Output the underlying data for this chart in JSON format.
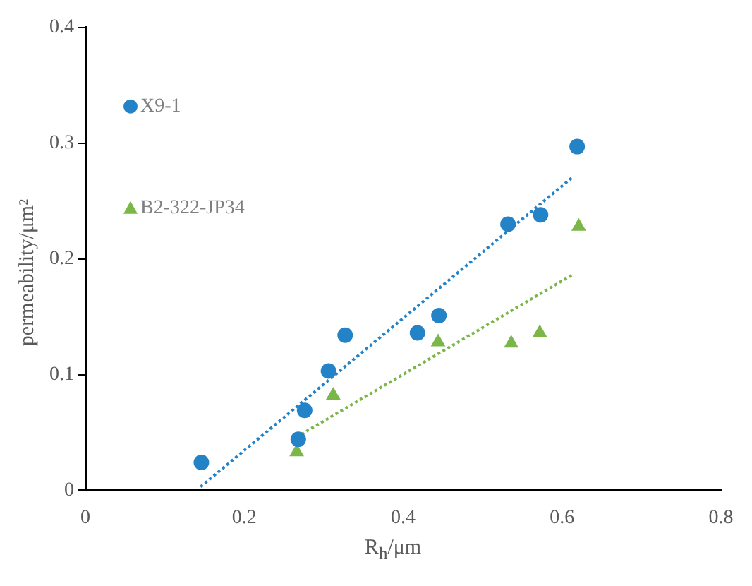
{
  "chart_data": {
    "type": "scatter",
    "xlabel": "R$_{h}$/μm",
    "ylabel": "permeability/μm²",
    "xlim": [
      0,
      0.8
    ],
    "xticks": [
      0,
      0.2,
      0.4,
      0.6,
      0.8
    ],
    "ylim": [
      0,
      0.4
    ],
    "yticks": [
      0,
      0.1,
      0.2,
      0.3,
      0.4
    ],
    "grid": false,
    "legend": "top left",
    "series": [
      {
        "name": "X9-1",
        "type": "scatter",
        "marker": "circle",
        "color": "#2483c7",
        "x": [
          0.146,
          0.268,
          0.276,
          0.306,
          0.327,
          0.418,
          0.445,
          0.532,
          0.573,
          0.619
        ],
        "values": [
          0.024,
          0.044,
          0.069,
          0.103,
          0.134,
          0.136,
          0.151,
          0.23,
          0.238,
          0.297
        ]
      },
      {
        "name": "B2-322-JP34",
        "type": "scatter",
        "marker": "triangle",
        "color": "#7ab648",
        "x": [
          0.266,
          0.312,
          0.444,
          0.536,
          0.572,
          0.621
        ],
        "values": [
          0.033,
          0.082,
          0.128,
          0.127,
          0.136,
          0.228
        ]
      },
      {
        "type": "line",
        "marker": "none",
        "line_style": "dotted",
        "color": "#2483c7",
        "x": [
          0.145,
          0.614
        ],
        "values": [
          0.003,
          0.271
        ]
      },
      {
        "type": "line",
        "marker": "none",
        "line_style": "dotted",
        "color": "#7ab648",
        "x": [
          0.266,
          0.615
        ],
        "values": [
          0.046,
          0.187
        ]
      }
    ]
  }
}
